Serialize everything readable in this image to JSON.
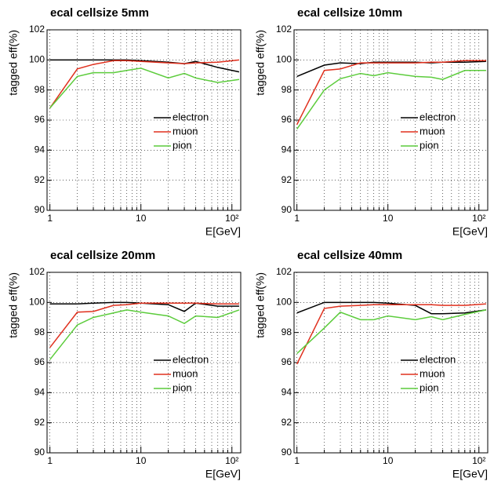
{
  "chart_data": [
    {
      "type": "line",
      "title": "ecal cellsize 5mm",
      "xlabel": "E[GeV]",
      "ylabel": "tagged eff(%)",
      "log_x": true,
      "grid": true,
      "minor_grid": true,
      "legend": "right",
      "x": [
        1,
        2,
        3,
        5,
        7,
        10,
        20,
        30,
        40,
        70,
        120
      ],
      "series": [
        {
          "name": "electron",
          "color": "#000000",
          "values": [
            100,
            100,
            100,
            100,
            100,
            99.95,
            99.85,
            99.75,
            99.9,
            99.5,
            99.2
          ]
        },
        {
          "name": "muon",
          "color": "#e0301e",
          "values": [
            96.8,
            99.4,
            99.7,
            99.95,
            99.95,
            99.9,
            99.8,
            99.75,
            99.8,
            99.85,
            100
          ]
        },
        {
          "name": "pion",
          "color": "#5ccc3c",
          "values": [
            96.8,
            98.9,
            99.15,
            99.15,
            99.3,
            99.45,
            98.8,
            99.1,
            98.8,
            98.5,
            98.7
          ]
        }
      ],
      "xlim": [
        0.93,
        125
      ],
      "ylim": [
        90,
        102
      ],
      "xticks": [
        1,
        10,
        {
          "value": 100,
          "label": "10²"
        }
      ],
      "yticks": [
        90,
        92,
        94,
        96,
        98,
        100,
        102
      ]
    },
    {
      "type": "line",
      "title": "ecal cellsize 10mm",
      "xlabel": "E[GeV]",
      "ylabel": "tagged eff(%)",
      "log_x": true,
      "grid": true,
      "minor_grid": true,
      "legend": "right",
      "x": [
        1,
        2,
        3,
        5,
        7,
        10,
        20,
        30,
        40,
        70,
        120
      ],
      "series": [
        {
          "name": "electron",
          "color": "#000000",
          "values": [
            98.9,
            99.65,
            99.8,
            99.75,
            99.85,
            99.85,
            99.85,
            99.8,
            99.85,
            99.85,
            99.9
          ]
        },
        {
          "name": "muon",
          "color": "#e0301e",
          "values": [
            95.7,
            99.3,
            99.4,
            99.8,
            99.8,
            99.8,
            99.8,
            99.85,
            99.85,
            99.95,
            99.95
          ]
        },
        {
          "name": "pion",
          "color": "#5ccc3c",
          "values": [
            95.4,
            98.0,
            98.75,
            99.1,
            98.95,
            99.15,
            98.9,
            98.85,
            98.7,
            99.3,
            99.3
          ]
        }
      ],
      "xlim": [
        0.93,
        125
      ],
      "ylim": [
        90,
        102
      ],
      "xticks": [
        1,
        10,
        {
          "value": 100,
          "label": "10²"
        }
      ],
      "yticks": [
        90,
        92,
        94,
        96,
        98,
        100,
        102
      ]
    },
    {
      "type": "line",
      "title": "ecal cellsize 20mm",
      "xlabel": "E[GeV]",
      "ylabel": "tagged eff(%)",
      "log_x": true,
      "grid": true,
      "minor_grid": true,
      "legend": "right",
      "x": [
        1,
        2,
        3,
        5,
        7,
        10,
        20,
        30,
        40,
        70,
        120
      ],
      "series": [
        {
          "name": "electron",
          "color": "#000000",
          "values": [
            99.9,
            99.9,
            99.95,
            100,
            100,
            99.95,
            99.85,
            99.4,
            99.95,
            99.75,
            99.75
          ]
        },
        {
          "name": "muon",
          "color": "#e0301e",
          "values": [
            97.0,
            99.35,
            99.4,
            99.8,
            99.85,
            99.95,
            99.95,
            99.95,
            99.95,
            99.9,
            99.9
          ]
        },
        {
          "name": "pion",
          "color": "#5ccc3c",
          "values": [
            96.2,
            98.5,
            99.0,
            99.3,
            99.5,
            99.35,
            99.1,
            98.6,
            99.1,
            99.0,
            99.5
          ]
        }
      ],
      "xlim": [
        0.93,
        125
      ],
      "ylim": [
        90,
        102
      ],
      "xticks": [
        1,
        10,
        {
          "value": 100,
          "label": "10²"
        }
      ],
      "yticks": [
        90,
        92,
        94,
        96,
        98,
        100,
        102
      ]
    },
    {
      "type": "line",
      "title": "ecal cellsize 40mm",
      "xlabel": "E[GeV]",
      "ylabel": "tagged eff(%)",
      "log_x": true,
      "grid": true,
      "minor_grid": true,
      "legend": "right",
      "x": [
        1,
        2,
        3,
        5,
        7,
        10,
        20,
        30,
        40,
        70,
        120
      ],
      "series": [
        {
          "name": "electron",
          "color": "#000000",
          "values": [
            99.3,
            100,
            100,
            100,
            100,
            99.95,
            99.8,
            99.25,
            99.25,
            99.3,
            99.5
          ]
        },
        {
          "name": "muon",
          "color": "#e0301e",
          "values": [
            95.9,
            99.6,
            99.75,
            99.8,
            99.85,
            99.85,
            99.85,
            99.85,
            99.8,
            99.8,
            99.9
          ]
        },
        {
          "name": "pion",
          "color": "#5ccc3c",
          "values": [
            96.6,
            98.3,
            99.35,
            98.85,
            98.85,
            99.1,
            98.85,
            99.05,
            98.85,
            99.2,
            99.5
          ]
        }
      ],
      "xlim": [
        0.93,
        125
      ],
      "ylim": [
        90,
        102
      ],
      "xticks": [
        1,
        10,
        {
          "value": 100,
          "label": "10²"
        }
      ],
      "yticks": [
        90,
        92,
        94,
        96,
        98,
        100,
        102
      ]
    }
  ]
}
